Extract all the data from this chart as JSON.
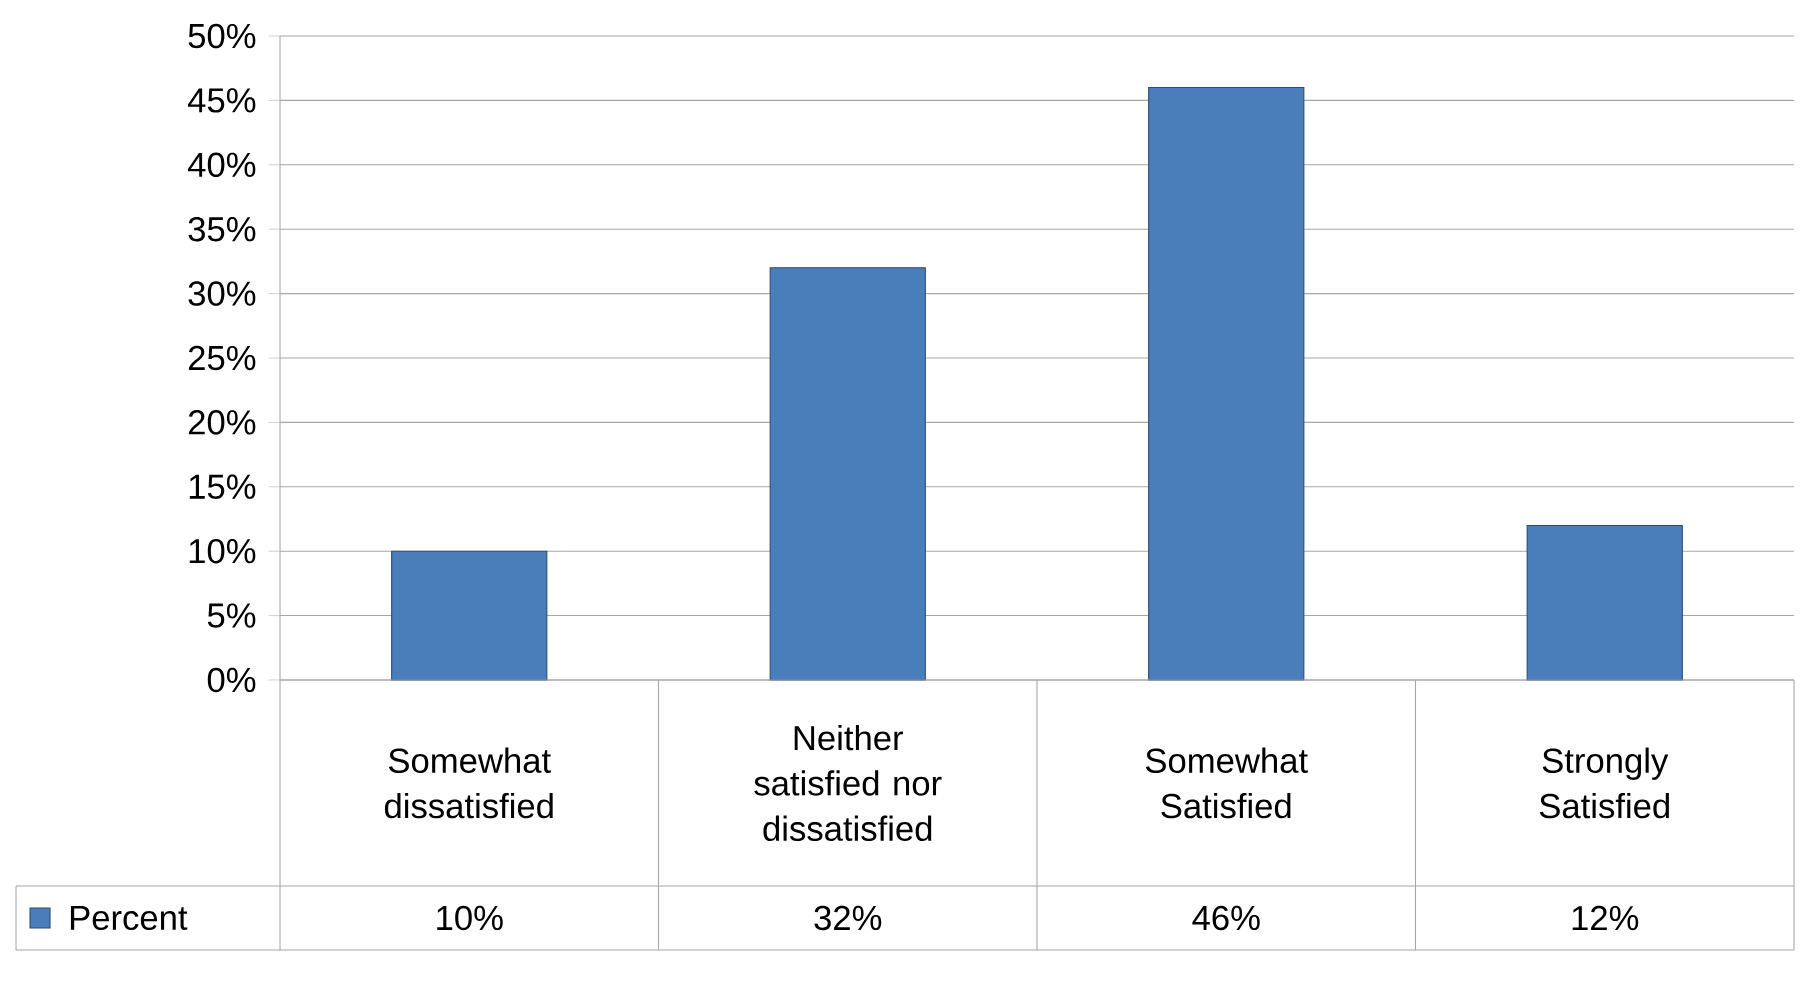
{
  "chart_data": {
    "type": "bar",
    "categories": [
      "Somewhat dissatisfied",
      "Neither satisfied nor dissatisfied",
      "Somewhat Satisfied",
      "Strongly Satisfied"
    ],
    "series": [
      {
        "name": "Percent",
        "color": "#4a7ebb",
        "values": [
          10,
          32,
          46,
          12
        ],
        "value_labels": [
          "10%",
          "32%",
          "46%",
          "12%"
        ]
      }
    ],
    "ylim": [
      0,
      50
    ],
    "yticks": [
      {
        "value": 0,
        "label": "0%"
      },
      {
        "value": 5,
        "label": "5%"
      },
      {
        "value": 10,
        "label": "10%"
      },
      {
        "value": 15,
        "label": "15%"
      },
      {
        "value": 20,
        "label": "20%"
      },
      {
        "value": 25,
        "label": "25%"
      },
      {
        "value": 30,
        "label": "30%"
      },
      {
        "value": 35,
        "label": "35%"
      },
      {
        "value": 40,
        "label": "40%"
      },
      {
        "value": 45,
        "label": "45%"
      },
      {
        "value": 50,
        "label": "50%"
      }
    ],
    "grid": "y",
    "legend": "bottom"
  }
}
